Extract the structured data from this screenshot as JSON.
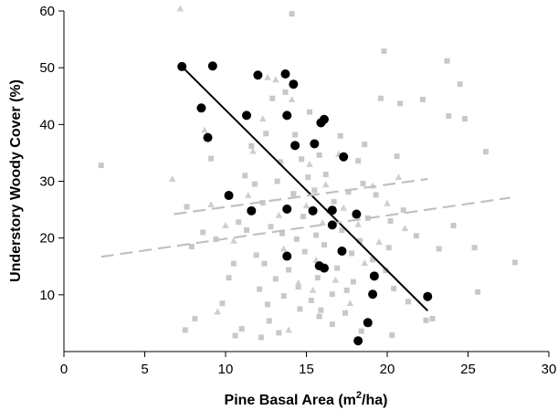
{
  "chart_data": {
    "type": "scatter",
    "title": "",
    "xlabel": "Pine Basal Area (m",
    "xlabel_sup": "2",
    "xlabel_tail": "/ha)",
    "ylabel": "Understory Woody Cover (%)",
    "xlim": [
      0,
      30
    ],
    "ylim": [
      0,
      60
    ],
    "x_ticks": [
      0,
      5,
      10,
      15,
      20,
      25,
      30
    ],
    "y_ticks": [
      10,
      20,
      30,
      40,
      50,
      60
    ],
    "grid": false,
    "colors": {
      "filled_circles": "#000000",
      "gray_squares": "#c8c8c8",
      "gray_triangles": "#cfcfcf",
      "trend_black": "#000000",
      "trend_dashed": "#c0c0c0"
    },
    "series": [
      {
        "marker": "circle",
        "points": [
          [
            7.3,
            50.2
          ],
          [
            9.2,
            50.3
          ],
          [
            8.5,
            42.9
          ],
          [
            8.9,
            37.7
          ],
          [
            11.3,
            41.6
          ],
          [
            12,
            48.7
          ],
          [
            13.7,
            48.9
          ],
          [
            14.2,
            47.1
          ],
          [
            13.8,
            41.6
          ],
          [
            14.3,
            36.3
          ],
          [
            15.5,
            36.6
          ],
          [
            15.9,
            40.3
          ],
          [
            16.1,
            40.9
          ],
          [
            17.3,
            34.3
          ],
          [
            10.2,
            27.5
          ],
          [
            11.6,
            24.8
          ],
          [
            13.8,
            25.1
          ],
          [
            15.4,
            24.8
          ],
          [
            16.6,
            24.9
          ],
          [
            18.1,
            24.2
          ],
          [
            16.6,
            22.3
          ],
          [
            17.2,
            17.7
          ],
          [
            15.8,
            15.1
          ],
          [
            16.1,
            14.7
          ],
          [
            13.8,
            16.8
          ],
          [
            19.2,
            13.3
          ],
          [
            19.1,
            10.1
          ],
          [
            18.8,
            5.1
          ],
          [
            18.2,
            1.9
          ],
          [
            22.5,
            9.7
          ]
        ]
      },
      {
        "marker": "square",
        "points": [
          [
            2.3,
            32.8
          ],
          [
            7.5,
            3.8
          ],
          [
            8.1,
            5.8
          ],
          [
            7.6,
            25.5
          ],
          [
            7.9,
            18.5
          ],
          [
            8.6,
            21
          ],
          [
            9.1,
            34
          ],
          [
            9.4,
            19.8
          ],
          [
            9.8,
            8.5
          ],
          [
            10.2,
            13
          ],
          [
            10.5,
            15.5
          ],
          [
            10.6,
            2.8
          ],
          [
            10.8,
            22.8
          ],
          [
            11.2,
            31
          ],
          [
            11.3,
            21.4
          ],
          [
            11.6,
            36.2
          ],
          [
            11.8,
            29.5
          ],
          [
            11.9,
            17
          ],
          [
            12.1,
            11
          ],
          [
            12.3,
            26.2
          ],
          [
            12.4,
            15.5
          ],
          [
            12.5,
            38.4
          ],
          [
            12.6,
            8.3
          ],
          [
            12.7,
            5.4
          ],
          [
            12.8,
            22
          ],
          [
            12.9,
            44.6
          ],
          [
            13.1,
            12.8
          ],
          [
            13.2,
            30
          ],
          [
            13.4,
            33.4
          ],
          [
            13.5,
            20.8
          ],
          [
            13.6,
            9.8
          ],
          [
            13.7,
            45.7
          ],
          [
            13.9,
            14.4
          ],
          [
            14.1,
            59.5
          ],
          [
            14.2,
            27.8
          ],
          [
            14.3,
            38.2
          ],
          [
            14.4,
            19.8
          ],
          [
            14.5,
            11.4
          ],
          [
            14.6,
            7.5
          ],
          [
            14.7,
            33.9
          ],
          [
            14.8,
            23.8
          ],
          [
            14.9,
            17.6
          ],
          [
            15.1,
            30.7
          ],
          [
            15.2,
            42.2
          ],
          [
            15.3,
            9
          ],
          [
            15.5,
            28.4
          ],
          [
            15.6,
            20.5
          ],
          [
            15.7,
            13
          ],
          [
            15.8,
            34.6
          ],
          [
            15.9,
            7.3
          ],
          [
            16.1,
            18.8
          ],
          [
            16.2,
            31.2
          ],
          [
            16.4,
            24.8
          ],
          [
            16.6,
            10.1
          ],
          [
            16.7,
            26.4
          ],
          [
            16.9,
            14.7
          ],
          [
            17.1,
            38
          ],
          [
            17.2,
            21.4
          ],
          [
            17.4,
            6.8
          ],
          [
            17.6,
            28.1
          ],
          [
            17.8,
            17.3
          ],
          [
            17.9,
            12.3
          ],
          [
            18.2,
            33.6
          ],
          [
            18.3,
            19.5
          ],
          [
            18.5,
            29.6
          ],
          [
            18.6,
            36.5
          ],
          [
            18.8,
            23.5
          ],
          [
            18.9,
            4.8
          ],
          [
            19.1,
            16.2
          ],
          [
            19.3,
            27.6
          ],
          [
            19.6,
            44.6
          ],
          [
            19.8,
            52.9
          ],
          [
            20.1,
            18.3
          ],
          [
            20.2,
            23
          ],
          [
            20.4,
            11.1
          ],
          [
            20.6,
            34.4
          ],
          [
            20.8,
            43.7
          ],
          [
            21,
            24.9
          ],
          [
            21.3,
            8.8
          ],
          [
            21.8,
            20.4
          ],
          [
            22.2,
            44.4
          ],
          [
            22.4,
            5.5
          ],
          [
            22.8,
            5.8
          ],
          [
            23.2,
            18.1
          ],
          [
            23.7,
            51.2
          ],
          [
            23.8,
            41.5
          ],
          [
            24.1,
            22.2
          ],
          [
            24.5,
            47.1
          ],
          [
            24.8,
            41
          ],
          [
            25.4,
            18.3
          ],
          [
            25.6,
            10.5
          ],
          [
            26.1,
            35.2
          ],
          [
            27.9,
            15.7
          ],
          [
            11,
            4
          ],
          [
            12.2,
            2.5
          ],
          [
            13.3,
            3.3
          ],
          [
            15.8,
            6.2
          ],
          [
            16.6,
            4.8
          ],
          [
            17.5,
            10.8
          ],
          [
            18.4,
            3.6
          ],
          [
            19.9,
            14.3
          ],
          [
            20.3,
            2.9
          ]
        ]
      },
      {
        "marker": "triangle",
        "points": [
          [
            6.7,
            30.4
          ],
          [
            7.2,
            60.4
          ],
          [
            8.7,
            39
          ],
          [
            9.1,
            25.9
          ],
          [
            9.5,
            7
          ],
          [
            10,
            22.2
          ],
          [
            10.5,
            19.5
          ],
          [
            11.4,
            27.5
          ],
          [
            11.7,
            35.3
          ],
          [
            12.3,
            41
          ],
          [
            12.6,
            48.3
          ],
          [
            13.1,
            47.9
          ],
          [
            13.3,
            24
          ],
          [
            13.6,
            18.1
          ],
          [
            14.1,
            44.4
          ],
          [
            14.5,
            12.1
          ],
          [
            15,
            25.7
          ],
          [
            15.2,
            33
          ],
          [
            15.6,
            16.1
          ],
          [
            16,
            22.7
          ],
          [
            16.2,
            29.4
          ],
          [
            16.8,
            12.6
          ],
          [
            17.3,
            25.3
          ],
          [
            17.7,
            8.5
          ],
          [
            18.2,
            22.4
          ],
          [
            18.6,
            15.6
          ],
          [
            19.1,
            29.2
          ],
          [
            19.5,
            19.3
          ],
          [
            20,
            26.1
          ],
          [
            20.7,
            30.7
          ],
          [
            21.1,
            21.7
          ],
          [
            13.9,
            3.8
          ],
          [
            15.4,
            10.8
          ],
          [
            17,
            34.8
          ]
        ]
      }
    ],
    "trend_lines": [
      {
        "style": "solid",
        "x": [
          7.3,
          22.5
        ],
        "y": [
          50.2,
          7.2
        ]
      },
      {
        "style": "dashed",
        "x": [
          6.8,
          22.5
        ],
        "y": [
          24.2,
          30.4
        ]
      },
      {
        "style": "dashed",
        "x": [
          2.3,
          27.6
        ],
        "y": [
          16.7,
          27.1
        ]
      }
    ]
  }
}
